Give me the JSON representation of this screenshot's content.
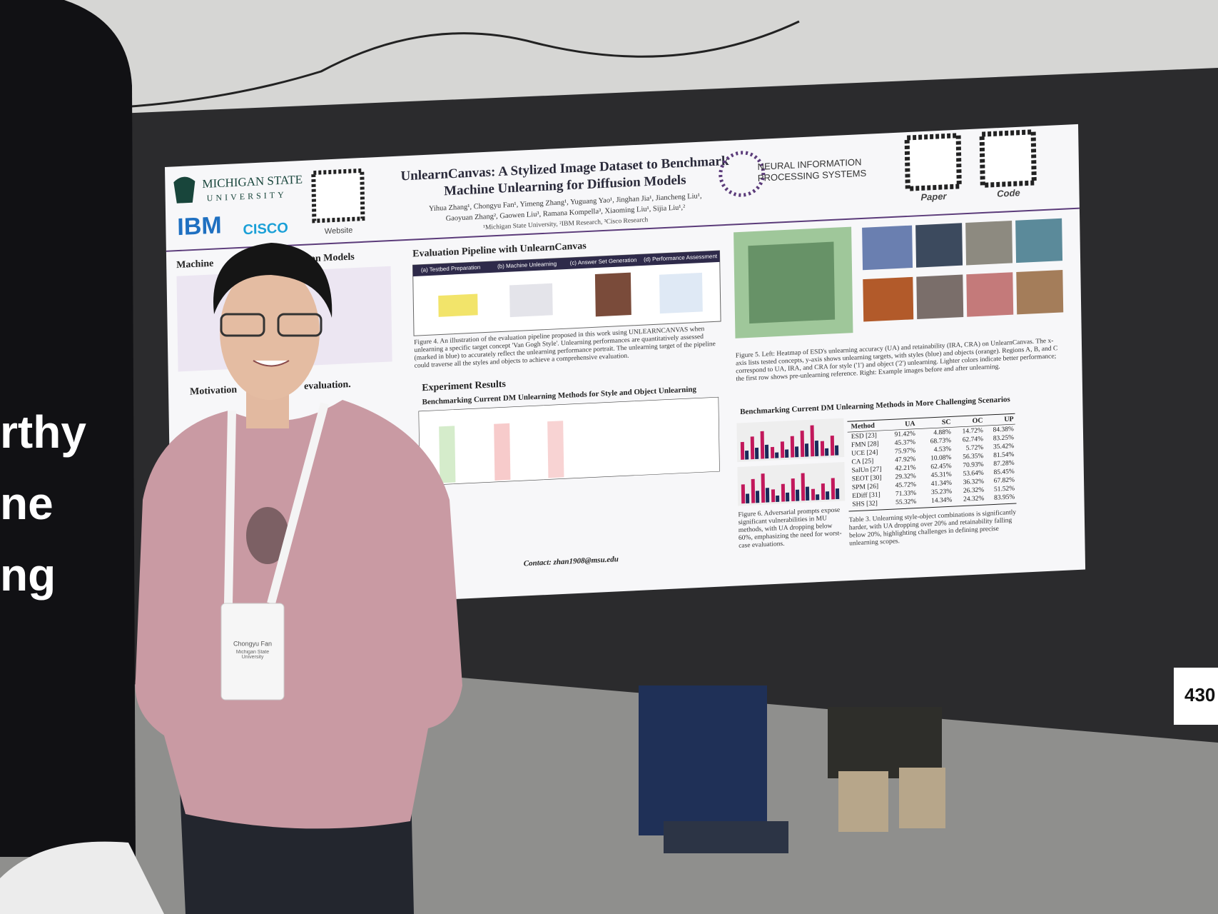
{
  "banner_text": [
    "rthy",
    "ne",
    "ng"
  ],
  "booth_number": "430",
  "poster": {
    "logos": {
      "msu_line1": "MICHIGAN STATE",
      "msu_line2": "UNIVERSITY",
      "ibm": "IBM",
      "cisco": "CISCO",
      "website": "Website",
      "neurips_line1": "NEURAL INFORMATION",
      "neurips_line2": "PROCESSING SYSTEMS",
      "paper": "Paper",
      "code": "Code"
    },
    "title_line1": "UnlearnCanvas: A Stylized Image Dataset to Benchmark",
    "title_line2": "Machine Unlearning for Diffusion Models",
    "authors_line1": "Yihua Zhang¹, Chongyu Fan¹, Yimeng Zhang¹, Yuguang Yao¹, Jinghan Jia¹, Jiancheng Liu¹,",
    "authors_line2": "Gaoyuan Zhang², Gaowen Liu³, Ramana Kompella³, Xiaoming Liu¹, Sijia Liu¹,²",
    "affiliations": "¹Michigan State University, ²IBM Research, ³Cisco Research",
    "left_sections": [
      "Machine",
      "fusion Models",
      "Motivation",
      "evaluation."
    ],
    "pipeline_heading": "Evaluation Pipeline with UnlearnCanvas",
    "pipeline_steps": [
      "(a) Testbed Preparation",
      "(b) Machine Unlearning",
      "(c) Answer Set Generation",
      "(d) Performance Assessment"
    ],
    "figure4_caption": "Figure 4. An illustration of the evaluation pipeline proposed in this work using UNLEARNCANVAS when unlearning a specific target concept 'Van Gogh Style'. Unlearning performances are quantitatively assessed (marked in blue) to accurately reflect the unlearning performance portrait. The unlearning target of the pipeline could traverse all the styles and objects to achieve a comprehensive evaluation.",
    "results_heading": "Experiment Results",
    "benchmark_heading": "Benchmarking Current DM Unlearning Methods for Style and Object Unlearning",
    "figure5_caption": "Figure 5. Left: Heatmap of ESD's unlearning accuracy (UA) and retainability (IRA, CRA) on UnlearnCanvas. The x-axis lists tested concepts, y-axis shows unlearning targets, with styles (blue) and objects (orange). Regions A, B, and C correspond to UA, IRA, and CRA for style ('1') and object ('2') unlearning. Lighter colors indicate better performance; the first row shows pre-unlearning reference. Right: Example images before and after unlearning.",
    "challenging_heading": "Benchmarking Current DM Unlearning Methods in More Challenging Scenarios",
    "figure6_caption": "Figure 6. Adversarial prompts expose significant vulnerabilities in MU methods, with UA dropping below 60%, emphasizing the need for worst-case evaluations.",
    "table3": {
      "header": [
        "Method",
        "UA",
        "SC",
        "OC",
        "UP"
      ],
      "rows": [
        [
          "ESD [23]",
          "91.42%",
          "4.88%",
          "14.72%",
          "84.38%"
        ],
        [
          "FMN [28]",
          "45.37%",
          "68.73%",
          "62.74%",
          "83.25%"
        ],
        [
          "UCE [24]",
          "75.97%",
          "4.53%",
          "5.72%",
          "35.42%"
        ],
        [
          "CA [25]",
          "47.92%",
          "10.08%",
          "56.35%",
          "81.54%"
        ],
        [
          "SalUn [27]",
          "42.21%",
          "62.45%",
          "70.93%",
          "87.28%"
        ],
        [
          "SEOT [30]",
          "29.32%",
          "45.31%",
          "53.64%",
          "85.45%"
        ],
        [
          "SPM [26]",
          "45.72%",
          "41.34%",
          "36.32%",
          "67.82%"
        ],
        [
          "EDiff [31]",
          "71.33%",
          "35.23%",
          "26.32%",
          "51.52%"
        ],
        [
          "SHS [32]",
          "55.32%",
          "14.34%",
          "24.32%",
          "83.95%"
        ]
      ]
    },
    "table3_caption": "Table 3. Unlearning style-object combinations is significantly harder, with UA dropping over 20% and retainability falling below 20%, highlighting challenges in defining precise unlearning scopes.",
    "contact": "Contact: zhan1908@msu.edu"
  },
  "badge": {
    "name": "Chongyu Fan",
    "org": "Michigan State University"
  }
}
